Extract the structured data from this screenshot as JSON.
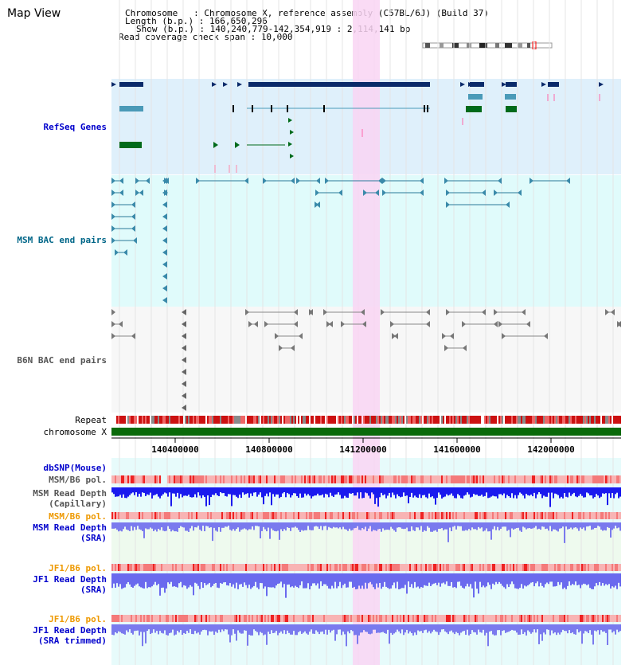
{
  "app": {
    "title": "Map View"
  },
  "info": {
    "chromosome": "Chromosome   : Chromosome X, reference assembly (C57BL/6J) (Build 37)",
    "length": "Length (b.p.) : 166,650,296",
    "show": "Show (b.p.) : 140,240,779-142,354,919 : 2,114,141 bp",
    "coverage": "Read coverage check span : 10,000"
  },
  "tracks": {
    "refseq": "RefSeq Genes",
    "msm_bac": "MSM BAC end pairs",
    "b6n_bac": "B6N BAC end pairs",
    "repeat": "Repeat",
    "chromosome": "chromosome X",
    "dbsnp": "dbSNP(Mouse)",
    "msm_b6_pol_1": "MSM/B6 pol.",
    "msm_depth_cap_1": "MSM Read Depth",
    "msm_depth_cap_2": "(Capillary)",
    "msm_b6_pol_2": "MSM/B6 pol.",
    "msm_depth_sra_1": "MSM Read Depth",
    "msm_depth_sra_2": "(SRA)",
    "jf1_b6_pol_1": "JF1/B6 pol.",
    "jf1_depth_sra_1": "JF1 Read Depth",
    "jf1_depth_sra_2": "(SRA)",
    "jf1_b6_pol_2": "JF1/B6 pol.",
    "jf1_depth_trim_1": "JF1 Read Depth",
    "jf1_depth_trim_2": "(SRA trimmed)"
  },
  "axis": {
    "ticks": [
      "140400000",
      "140800000",
      "141200000",
      "141600000",
      "142000000"
    ]
  },
  "colors": {
    "refseq_bg": "#dff0fb",
    "msm_bg": "#e0fbfb",
    "b6n_bg": "#f7f7f7",
    "highlight": "#f9d5f3",
    "refseq_label": "#0000cc",
    "msm_label": "#006688",
    "b6n_label": "#555555",
    "pol_label": "#ee9900",
    "depth_label": "#0000cc"
  }
}
